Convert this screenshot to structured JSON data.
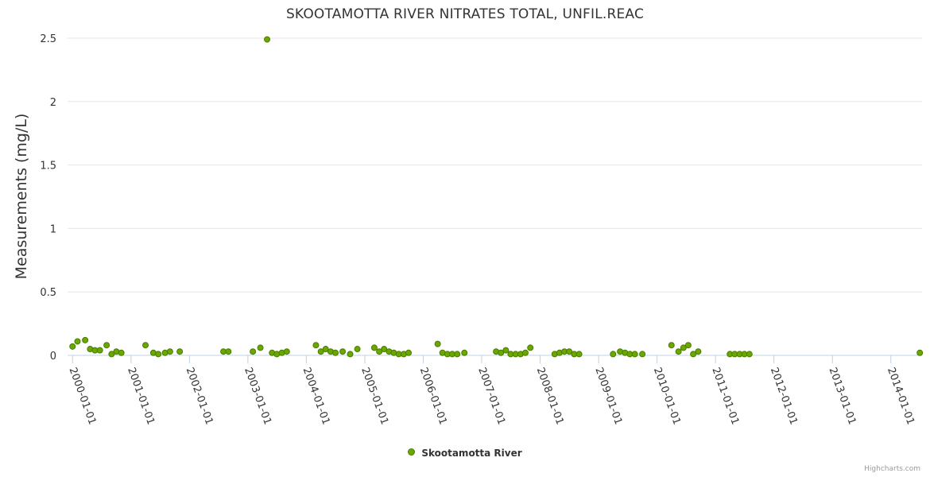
{
  "chart_data": {
    "type": "scatter",
    "title": "SKOOTAMOTTA RIVER NITRATES TOTAL, UNFIL.REAC",
    "ylabel": "Measurements (mg/L)",
    "xlabel": "",
    "ylim": [
      0,
      2.5
    ],
    "yticks": [
      "2.5",
      "2",
      "1.5",
      "1",
      "0.5",
      "0"
    ],
    "xlim": [
      "1999-12-01",
      "2014-07-15"
    ],
    "xticks": [
      "2000-01-01",
      "2001-01-01",
      "2002-01-01",
      "2003-01-01",
      "2004-01-01",
      "2005-01-01",
      "2006-01-01",
      "2007-01-01",
      "2008-01-01",
      "2009-01-01",
      "2010-01-01",
      "2011-01-01",
      "2012-01-01",
      "2013-01-01",
      "2014-01-01"
    ],
    "grid": true,
    "legend_position": "bottom",
    "series": [
      {
        "name": "Skootamotta River",
        "color": "#6aa800",
        "points": [
          [
            "2000-01-01",
            0.07
          ],
          [
            "2000-02-01",
            0.11
          ],
          [
            "2000-03-20",
            0.12
          ],
          [
            "2000-04-20",
            0.05
          ],
          [
            "2000-05-20",
            0.04
          ],
          [
            "2000-06-20",
            0.04
          ],
          [
            "2000-08-01",
            0.08
          ],
          [
            "2000-09-01",
            0.01
          ],
          [
            "2000-10-01",
            0.03
          ],
          [
            "2000-11-01",
            0.02
          ],
          [
            "2001-04-01",
            0.08
          ],
          [
            "2001-05-20",
            0.02
          ],
          [
            "2001-06-20",
            0.01
          ],
          [
            "2001-08-01",
            0.02
          ],
          [
            "2001-09-01",
            0.03
          ],
          [
            "2001-11-01",
            0.03
          ],
          [
            "2002-08-01",
            0.03
          ],
          [
            "2002-09-01",
            0.03
          ],
          [
            "2003-02-01",
            0.03
          ],
          [
            "2003-03-20",
            0.06
          ],
          [
            "2003-05-01",
            2.49
          ],
          [
            "2003-06-01",
            0.02
          ],
          [
            "2003-07-01",
            0.01
          ],
          [
            "2003-08-01",
            0.02
          ],
          [
            "2003-09-01",
            0.03
          ],
          [
            "2004-03-01",
            0.08
          ],
          [
            "2004-04-01",
            0.03
          ],
          [
            "2004-05-01",
            0.05
          ],
          [
            "2004-06-01",
            0.03
          ],
          [
            "2004-07-01",
            0.02
          ],
          [
            "2004-08-15",
            0.03
          ],
          [
            "2004-10-01",
            0.01
          ],
          [
            "2004-11-15",
            0.05
          ],
          [
            "2005-03-01",
            0.06
          ],
          [
            "2005-04-01",
            0.03
          ],
          [
            "2005-05-01",
            0.05
          ],
          [
            "2005-06-01",
            0.03
          ],
          [
            "2005-07-01",
            0.02
          ],
          [
            "2005-08-01",
            0.01
          ],
          [
            "2005-09-01",
            0.01
          ],
          [
            "2005-10-01",
            0.02
          ],
          [
            "2006-04-01",
            0.09
          ],
          [
            "2006-05-01",
            0.02
          ],
          [
            "2006-06-01",
            0.01
          ],
          [
            "2006-07-01",
            0.01
          ],
          [
            "2006-08-01",
            0.01
          ],
          [
            "2006-09-15",
            0.02
          ],
          [
            "2007-04-01",
            0.03
          ],
          [
            "2007-05-01",
            0.02
          ],
          [
            "2007-06-01",
            0.04
          ],
          [
            "2007-07-01",
            0.01
          ],
          [
            "2007-08-01",
            0.01
          ],
          [
            "2007-09-01",
            0.01
          ],
          [
            "2007-10-01",
            0.02
          ],
          [
            "2007-11-01",
            0.06
          ],
          [
            "2008-04-01",
            0.01
          ],
          [
            "2008-05-01",
            0.02
          ],
          [
            "2008-06-01",
            0.03
          ],
          [
            "2008-07-01",
            0.03
          ],
          [
            "2008-08-01",
            0.01
          ],
          [
            "2008-09-01",
            0.01
          ],
          [
            "2009-04-01",
            0.01
          ],
          [
            "2009-05-15",
            0.03
          ],
          [
            "2009-06-15",
            0.02
          ],
          [
            "2009-07-15",
            0.01
          ],
          [
            "2009-08-15",
            0.01
          ],
          [
            "2009-10-01",
            0.01
          ],
          [
            "2010-04-01",
            0.08
          ],
          [
            "2010-05-15",
            0.03
          ],
          [
            "2010-06-15",
            0.06
          ],
          [
            "2010-07-15",
            0.08
          ],
          [
            "2010-08-15",
            0.01
          ],
          [
            "2010-09-15",
            0.03
          ],
          [
            "2011-04-01",
            0.01
          ],
          [
            "2011-05-01",
            0.01
          ],
          [
            "2011-06-01",
            0.01
          ],
          [
            "2011-07-01",
            0.01
          ],
          [
            "2011-08-01",
            0.01
          ],
          [
            "2014-07-01",
            0.02
          ]
        ]
      }
    ]
  },
  "credits": "Highcharts.com"
}
